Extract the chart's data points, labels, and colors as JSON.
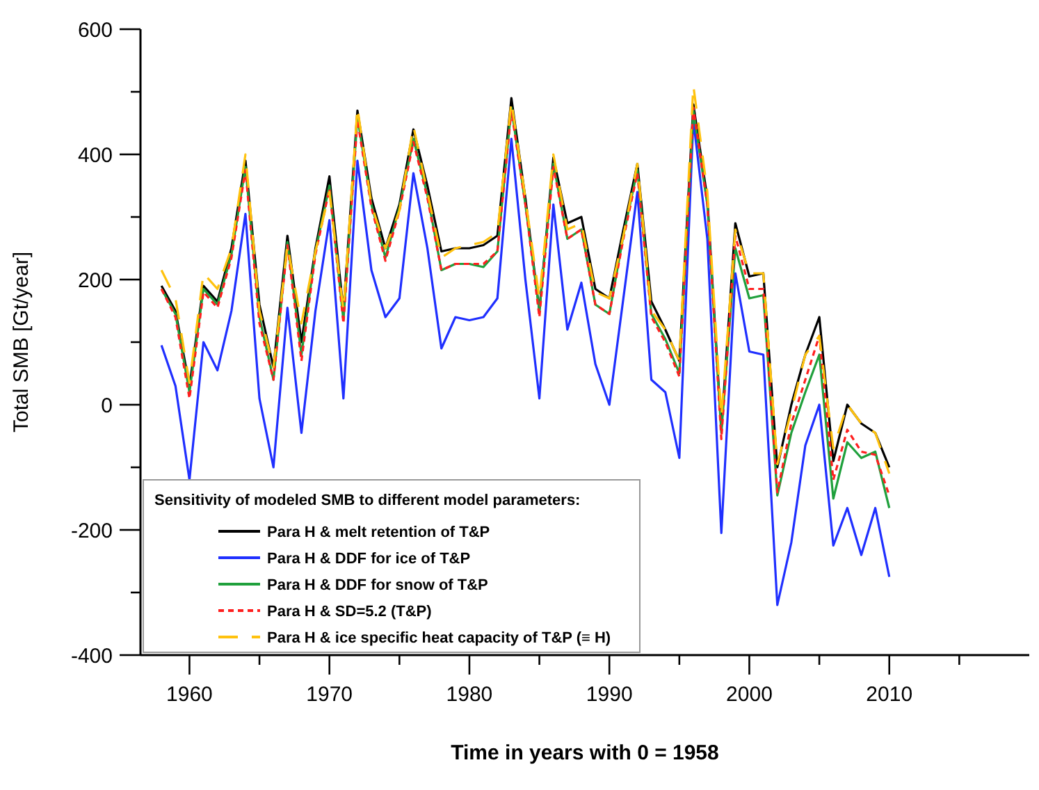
{
  "chart_data": {
    "type": "line",
    "xlabel": "Time in years with 0 = 1958",
    "ylabel": "Total SMB [Gt/year]",
    "legend_title": "Sensitivity of modeled SMB to different model parameters:",
    "legend": "bottom left",
    "grid": false,
    "x": [
      1958,
      1959,
      1960,
      1961,
      1962,
      1963,
      1964,
      1965,
      1966,
      1967,
      1968,
      1969,
      1970,
      1971,
      1972,
      1973,
      1974,
      1975,
      1976,
      1977,
      1978,
      1979,
      1980,
      1981,
      1982,
      1983,
      1984,
      1985,
      1986,
      1987,
      1988,
      1989,
      1990,
      1991,
      1992,
      1993,
      1994,
      1995,
      1996,
      1997,
      1998,
      1999,
      2000,
      2001,
      2002,
      2003,
      2004,
      2005,
      2006,
      2007,
      2008,
      2009,
      2010
    ],
    "xlim": [
      1956.5,
      2020
    ],
    "xticks": [
      1960,
      {
        "value": 1965,
        "label": null
      },
      1970,
      {
        "value": 1975,
        "label": null
      },
      1980,
      {
        "value": 1985,
        "label": null
      },
      1990,
      {
        "value": 1995,
        "label": null
      },
      2000,
      {
        "value": 2005,
        "label": null
      },
      2010,
      {
        "value": 2015,
        "label": null
      }
    ],
    "ylim": [
      -400,
      600
    ],
    "yticks": [
      -400,
      {
        "value": -300,
        "label": null
      },
      -200,
      {
        "value": -100,
        "label": null
      },
      0,
      {
        "value": 100,
        "label": null
      },
      200,
      {
        "value": 300,
        "label": null
      },
      400,
      {
        "value": 500,
        "label": null
      },
      600
    ],
    "series": [
      {
        "name": "Para H & melt retention of T&P",
        "color": "#000000",
        "line_style": "solid",
        "values": [
          190,
          150,
          30,
          190,
          165,
          250,
          390,
          160,
          60,
          270,
          100,
          250,
          365,
          150,
          470,
          330,
          250,
          320,
          440,
          350,
          245,
          250,
          250,
          255,
          270,
          490,
          330,
          150,
          395,
          290,
          300,
          185,
          170,
          280,
          385,
          165,
          120,
          70,
          480,
          330,
          -40,
          290,
          205,
          210,
          -100,
          0,
          80,
          140,
          -90,
          0,
          -30,
          -45,
          -100
        ]
      },
      {
        "name": "Para H & DDF for ice of T&P",
        "color": "#1f2fff",
        "line_style": "solid",
        "values": [
          95,
          30,
          -120,
          100,
          55,
          150,
          305,
          10,
          -100,
          155,
          -45,
          150,
          295,
          10,
          390,
          215,
          140,
          170,
          370,
          250,
          90,
          140,
          135,
          140,
          170,
          425,
          200,
          10,
          320,
          120,
          195,
          65,
          0,
          170,
          340,
          40,
          20,
          -85,
          455,
          265,
          -205,
          210,
          85,
          80,
          -320,
          -220,
          -65,
          0,
          -225,
          -165,
          -240,
          -165,
          -275
        ]
      },
      {
        "name": "Para H & DDF for snow of T&P",
        "color": "#1fa03c",
        "line_style": "solid",
        "values": [
          185,
          145,
          20,
          185,
          160,
          240,
          380,
          140,
          40,
          260,
          80,
          245,
          350,
          135,
          460,
          320,
          235,
          315,
          425,
          335,
          215,
          225,
          225,
          220,
          245,
          475,
          320,
          150,
          385,
          265,
          280,
          160,
          145,
          270,
          375,
          145,
          105,
          50,
          470,
          320,
          -45,
          250,
          170,
          175,
          -145,
          -45,
          20,
          80,
          -150,
          -60,
          -85,
          -75,
          -165
        ]
      },
      {
        "name": "Para H & SD=5.2 (T&P)",
        "color": "#ff1f1f",
        "line_style": "dashed",
        "values": [
          185,
          140,
          10,
          180,
          155,
          235,
          375,
          130,
          40,
          255,
          70,
          240,
          345,
          130,
          455,
          315,
          230,
          310,
          420,
          330,
          215,
          225,
          225,
          225,
          245,
          470,
          320,
          140,
          380,
          265,
          280,
          160,
          145,
          265,
          370,
          140,
          100,
          45,
          475,
          320,
          -55,
          270,
          185,
          185,
          -140,
          -30,
          40,
          110,
          -120,
          -40,
          -75,
          -80,
          -145
        ]
      },
      {
        "name": "Para H & ice specific heat capacity of T&P (≡ H)",
        "color": "#ffc20e",
        "line_style": "longdash",
        "values": [
          215,
          170,
          35,
          210,
          185,
          250,
          400,
          150,
          60,
          255,
          130,
          245,
          340,
          150,
          475,
          320,
          250,
          310,
          445,
          340,
          235,
          250,
          255,
          260,
          275,
          485,
          330,
          170,
          400,
          280,
          290,
          180,
          170,
          270,
          385,
          150,
          120,
          70,
          510,
          340,
          -20,
          280,
          210,
          210,
          -95,
          -10,
          80,
          110,
          -70,
          0,
          -30,
          -45,
          -110
        ]
      }
    ]
  }
}
